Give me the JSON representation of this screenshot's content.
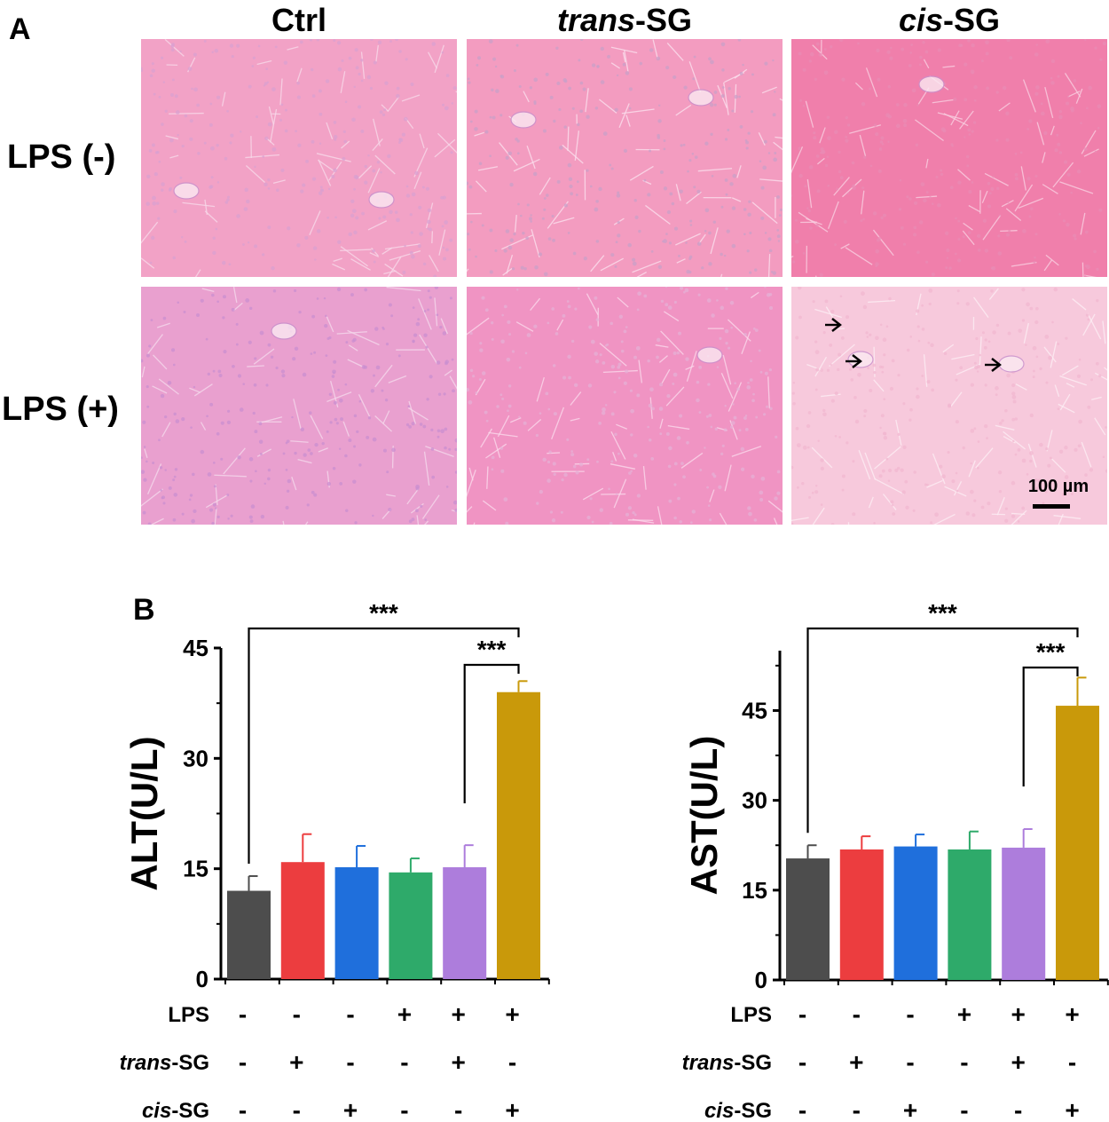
{
  "panel_a": {
    "letter": "A",
    "columns": [
      {
        "id": "ctrl",
        "parts": [
          {
            "t": "Ctrl",
            "i": false
          }
        ]
      },
      {
        "id": "trans",
        "parts": [
          {
            "t": "trans",
            "i": true
          },
          {
            "t": "-SG",
            "i": false
          }
        ]
      },
      {
        "id": "cis",
        "parts": [
          {
            "t": "cis",
            "i": true
          },
          {
            "t": "-SG",
            "i": false
          }
        ]
      }
    ],
    "rows": [
      "LPS (-)",
      "LPS (+)"
    ],
    "scale_bar": "100 µm",
    "images": [
      {
        "row": 0,
        "col": 0,
        "tone": "#f2a2c6",
        "cell": "#d9a0d0",
        "lumen": "#f8d9ea"
      },
      {
        "row": 0,
        "col": 1,
        "tone": "#f39cc0",
        "cell": "#c9a0c8",
        "lumen": "#fbe0ee"
      },
      {
        "row": 0,
        "col": 2,
        "tone": "#f07fab",
        "cell": "#e98bb4",
        "lumen": "#f9cfe1"
      },
      {
        "row": 1,
        "col": 0,
        "tone": "#e9a0cf",
        "cell": "#c98fd0",
        "lumen": "#f5d9ec"
      },
      {
        "row": 1,
        "col": 1,
        "tone": "#f094c3",
        "cell": "#e5b0d6",
        "lumen": "#fbd9ec"
      },
      {
        "row": 1,
        "col": 2,
        "tone": "#f7c9dc",
        "cell": "#f2b7d0",
        "lumen": "#fdeef4"
      }
    ]
  },
  "panel_b": {
    "letter": "B"
  },
  "chart_data": [
    {
      "type": "bar",
      "ylabel": "ALT(U/L)",
      "ylim": [
        0,
        45
      ],
      "yticks": [
        0,
        15,
        30,
        45
      ],
      "values": [
        12.0,
        15.9,
        15.2,
        14.5,
        15.2,
        39.0
      ],
      "errors": [
        2.0,
        3.8,
        2.9,
        1.9,
        3.0,
        1.5
      ],
      "colors": [
        "#4d4d4d",
        "#ec3d3f",
        "#1f6fdc",
        "#2eaa6a",
        "#ad7ddc",
        "#c9990a"
      ],
      "significance": [
        {
          "from": 0,
          "to": 5,
          "label": "***",
          "level": 0
        },
        {
          "from": 4,
          "to": 5,
          "label": "***",
          "level": 1
        }
      ]
    },
    {
      "type": "bar",
      "ylabel": "AST(U/L)",
      "ylim": [
        0,
        55
      ],
      "yticks": [
        0,
        15,
        30,
        45
      ],
      "values": [
        20.3,
        21.8,
        22.3,
        21.8,
        22.1,
        45.8
      ],
      "errors": [
        2.2,
        2.2,
        2.0,
        3.0,
        3.1,
        4.7
      ],
      "colors": [
        "#4d4d4d",
        "#ec3d3f",
        "#1f6fdc",
        "#2eaa6a",
        "#ad7ddc",
        "#c9990a"
      ],
      "significance": [
        {
          "from": 0,
          "to": 5,
          "label": "***",
          "level": 0
        },
        {
          "from": 4,
          "to": 5,
          "label": "***",
          "level": 1
        }
      ]
    }
  ],
  "treatments": [
    {
      "parts": [
        {
          "t": "LPS",
          "i": false
        }
      ],
      "signs": [
        "-",
        "-",
        "-",
        "+",
        "+",
        "+"
      ]
    },
    {
      "parts": [
        {
          "t": "trans",
          "i": true
        },
        {
          "t": "-SG",
          "i": false
        }
      ],
      "signs": [
        "-",
        "+",
        "-",
        "-",
        "+",
        "-"
      ]
    },
    {
      "parts": [
        {
          "t": "cis",
          "i": true
        },
        {
          "t": "-SG",
          "i": false
        }
      ],
      "signs": [
        "-",
        "-",
        "+",
        "-",
        "-",
        "+"
      ]
    }
  ]
}
